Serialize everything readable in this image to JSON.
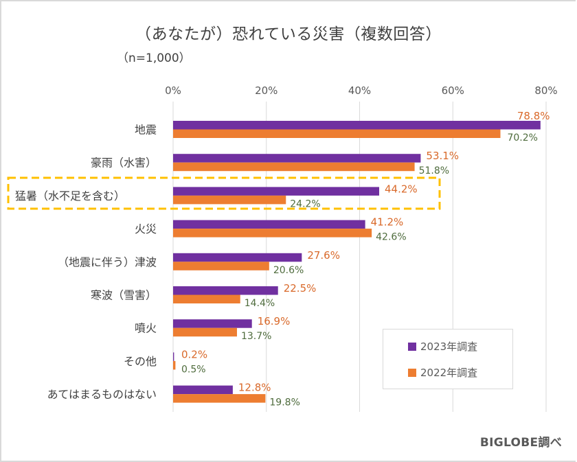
{
  "colors": {
    "series_2023": "#7030A0",
    "series_2022": "#ED7D31",
    "label_2023": "#D9692A",
    "label_2022": "#4E6B3C",
    "highlight_box": "#FFC000",
    "gridline": "#D9D9D9"
  },
  "chart_data": {
    "type": "bar",
    "orientation": "horizontal",
    "title": "（あなたが）恐れている災害（複数回答）",
    "subtitle": "（n=1,000）",
    "xlabel": "",
    "ylabel": "",
    "xlim": [
      0,
      80
    ],
    "x_ticks": [
      0,
      20,
      40,
      60,
      80
    ],
    "x_tick_labels": [
      "0%",
      "20%",
      "40%",
      "60%",
      "80%"
    ],
    "x_axis_position": "top",
    "grid": true,
    "categories": [
      "地震",
      "豪雨（水害）",
      "猛暑（水不足を含む）",
      "火災",
      "（地震に伴う）津波",
      "寒波（雪害）",
      "噴火",
      "その他",
      "あてはまるものはない"
    ],
    "series": [
      {
        "name": "2023年調査",
        "values": [
          78.8,
          53.1,
          44.2,
          41.2,
          27.6,
          22.5,
          16.9,
          0.2,
          12.8
        ],
        "data_labels": [
          "78.8%",
          "53.1%",
          "44.2%",
          "41.2%",
          "27.6%",
          "22.5%",
          "16.9%",
          "0.2%",
          "12.8%"
        ]
      },
      {
        "name": "2022年調査",
        "values": [
          70.2,
          51.8,
          24.2,
          42.6,
          20.6,
          14.4,
          13.7,
          0.5,
          19.8
        ],
        "data_labels": [
          "70.2%",
          "51.8%",
          "24.2%",
          "42.6%",
          "20.6%",
          "14.4%",
          "13.7%",
          "0.5%",
          "19.8%"
        ]
      }
    ],
    "highlighted_category": "猛暑（水不足を含む）",
    "legend": {
      "position": "bottom-right",
      "entries": [
        "2023年調査",
        "2022年調査"
      ]
    },
    "source": "BIGLOBE調べ"
  }
}
